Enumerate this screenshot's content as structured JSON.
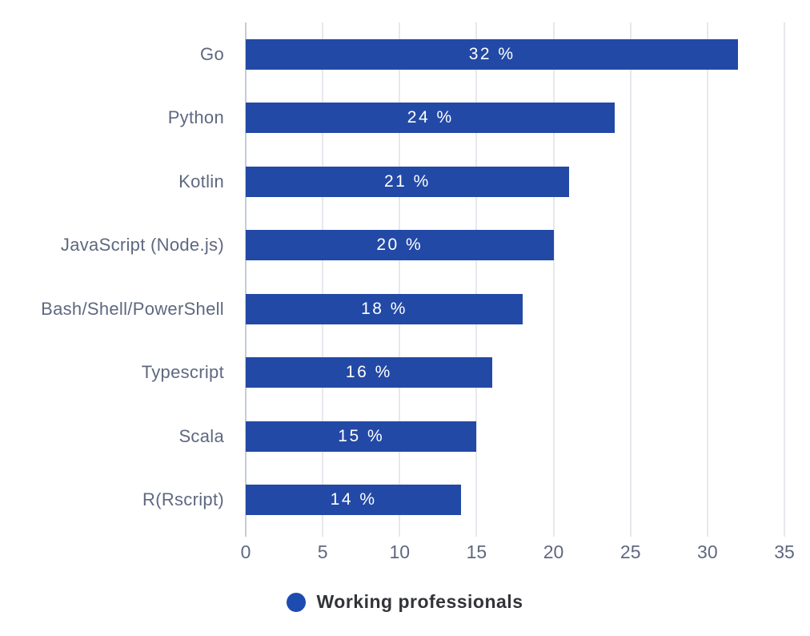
{
  "chart_data": {
    "type": "bar",
    "orientation": "horizontal",
    "title": "",
    "xlabel": "",
    "ylabel": "",
    "categories": [
      "Go",
      "Python",
      "Kotlin",
      "JavaScript (Node.js)",
      "Bash/Shell/PowerShell",
      "Typescript",
      "Scala",
      "R(Rscript)"
    ],
    "series": [
      {
        "name": "Working professionals",
        "values": [
          32,
          24,
          21,
          20,
          18,
          16,
          15,
          14
        ]
      }
    ],
    "value_labels": [
      "32 %",
      "24 %",
      "21 %",
      "20 %",
      "18 %",
      "16 %",
      "15 %",
      "14 %"
    ],
    "xlim": [
      0,
      35
    ],
    "xticks": [
      0,
      5,
      10,
      15,
      20,
      25,
      30,
      35
    ],
    "grid": "vertical-only",
    "legend_position": "bottom-center",
    "colors": {
      "background": "#ffffff",
      "bar": "#2249a5",
      "legend_dot": "#1e4bb0",
      "value_text": "#ffffff",
      "category_label": "#5f6880",
      "tick_label": "#5f6880",
      "legend_text": "#333438",
      "gridline": "#e7e8ed",
      "zero_line": "#c6cbd6"
    }
  },
  "legend": {
    "label": "Working professionals"
  }
}
